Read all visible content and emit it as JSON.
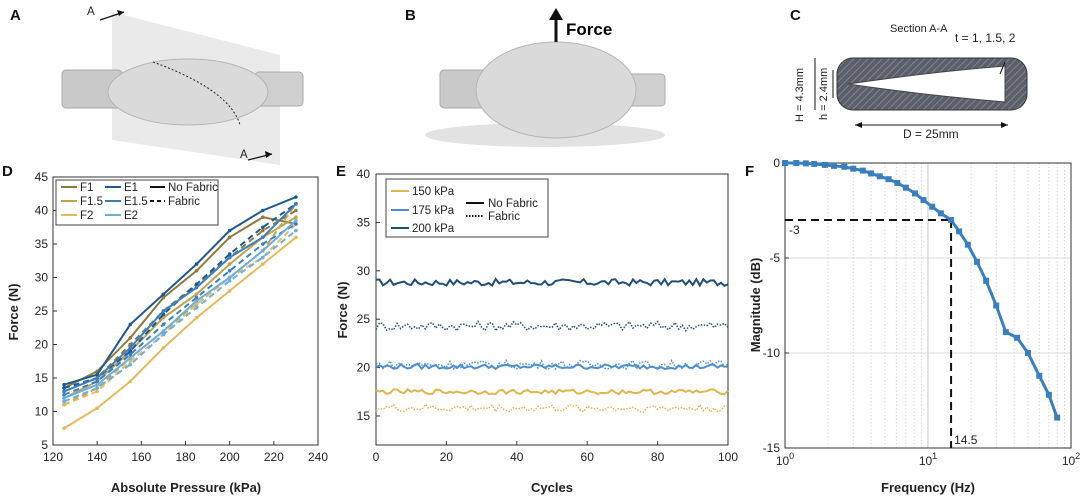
{
  "panels": {
    "a": "A",
    "b": "B",
    "c": "C",
    "d": "D",
    "e": "E",
    "f": "F"
  },
  "photo_a": {
    "section_mark_top": "A",
    "section_mark_bottom": "A"
  },
  "photo_b": {
    "force_label": "Force"
  },
  "section": {
    "title": "Section A-A",
    "t_label": "t = 1, 1.5, 2",
    "H_label": "H = 4.3mm",
    "h_label": "h = 2.4mm",
    "D_label": "D = 25mm"
  },
  "chart_data": [
    {
      "id": "D",
      "type": "line",
      "xlabel": "Absolute Pressure (kPa)",
      "ylabel": "Force (N)",
      "xlim": [
        120,
        240
      ],
      "ylim": [
        5,
        45
      ],
      "xticks": [
        120,
        140,
        160,
        180,
        200,
        220,
        240
      ],
      "yticks": [
        5,
        10,
        15,
        20,
        25,
        30,
        35,
        40,
        45
      ],
      "grid": false,
      "legend_position": "top-left",
      "legend_entries": [
        "F1",
        "F1.5",
        "F2",
        "E1",
        "E1.5",
        "E2",
        "No Fabric",
        "Fabric"
      ],
      "x": [
        125,
        140,
        155,
        170,
        185,
        200,
        215,
        230
      ],
      "series": [
        {
          "name": "F1",
          "color": "#8d7a3f",
          "style": "solid",
          "values": [
            13.5,
            16,
            21,
            27,
            31,
            36,
            39,
            38
          ]
        },
        {
          "name": "F1",
          "color": "#8d7a3f",
          "style": "dashed",
          "values": [
            13,
            15,
            20,
            25,
            29,
            33,
            37,
            40
          ]
        },
        {
          "name": "F1.5",
          "color": "#c4a24a",
          "style": "solid",
          "values": [
            12,
            14.5,
            19,
            24,
            27.5,
            32,
            36,
            39
          ]
        },
        {
          "name": "F1.5",
          "color": "#c4a24a",
          "style": "dashed",
          "values": [
            11,
            13.5,
            18,
            22,
            26,
            30,
            34,
            41
          ]
        },
        {
          "name": "F2",
          "color": "#e4bb5c",
          "style": "solid",
          "values": [
            7.5,
            10.5,
            14.5,
            19.5,
            24,
            28,
            32,
            36
          ]
        },
        {
          "name": "F2",
          "color": "#e4bb5c",
          "style": "dashed",
          "values": [
            11,
            13,
            17.5,
            21.5,
            26,
            30,
            33,
            38
          ]
        },
        {
          "name": "E1",
          "color": "#1f5a8e",
          "style": "solid",
          "values": [
            14,
            15.5,
            23,
            27.5,
            32,
            37,
            40,
            42
          ]
        },
        {
          "name": "E1",
          "color": "#1f5a8e",
          "style": "dashed",
          "values": [
            13.5,
            15,
            19,
            24.5,
            29,
            33.5,
            37.5,
            41
          ]
        },
        {
          "name": "E1.5",
          "color": "#3a7fbd",
          "style": "solid",
          "values": [
            13,
            15,
            19.5,
            25,
            28.5,
            33,
            36,
            41
          ]
        },
        {
          "name": "E1.5",
          "color": "#3a7fbd",
          "style": "dashed",
          "values": [
            12.5,
            14.5,
            18.5,
            23,
            27,
            31,
            35,
            38
          ]
        },
        {
          "name": "E2",
          "color": "#6aaee0",
          "style": "solid",
          "values": [
            12,
            14,
            18,
            22,
            26.5,
            30,
            34,
            38.5
          ]
        },
        {
          "name": "E2",
          "color": "#6aaee0",
          "style": "dashed",
          "values": [
            11.5,
            13.5,
            17,
            21.5,
            25.5,
            29.5,
            33,
            37
          ]
        }
      ]
    },
    {
      "id": "E",
      "type": "line",
      "xlabel": "Cycles",
      "ylabel": "Force (N)",
      "xlim": [
        0,
        100
      ],
      "ylim": [
        12,
        40
      ],
      "xticks": [
        0,
        20,
        40,
        60,
        80,
        100
      ],
      "yticks": [
        15,
        20,
        25,
        30,
        35,
        40
      ],
      "grid": false,
      "legend_position": "top-left",
      "legend_entries": [
        "150 kPa",
        "175 kPa",
        "200 kPa",
        "No Fabric",
        "Fabric"
      ],
      "series": [
        {
          "name": "200 kPa",
          "color": "#1f4e79",
          "style": "solid",
          "mean": 28.8,
          "noise": 0.35
        },
        {
          "name": "200 kPa",
          "color": "#1f4e79",
          "style": "dotted",
          "mean": 24.3,
          "noise": 0.5
        },
        {
          "name": "175 kPa",
          "color": "#4b8fcf",
          "style": "solid",
          "mean": 20.1,
          "noise": 0.25
        },
        {
          "name": "175 kPa",
          "color": "#4b8fcf",
          "style": "dotted",
          "mean": 20.3,
          "noise": 0.45
        },
        {
          "name": "150 kPa",
          "color": "#e1b54e",
          "style": "solid",
          "mean": 17.5,
          "noise": 0.25
        },
        {
          "name": "150 kPa",
          "color": "#e1b54e",
          "style": "dotted",
          "mean": 15.8,
          "noise": 0.4
        }
      ]
    },
    {
      "id": "F",
      "type": "line",
      "xlabel": "Frequency (Hz)",
      "ylabel": "Magnitude (dB)",
      "xscale": "log",
      "xlim": [
        1,
        100
      ],
      "ylim": [
        -15,
        0
      ],
      "xticks": [
        "10^0",
        "10^1",
        "10^2"
      ],
      "yticks": [
        0,
        -5,
        -10,
        -15
      ],
      "grid": true,
      "annotations": [
        "-3",
        "14.5"
      ],
      "series": [
        {
          "name": "",
          "color": "#3a7fbd",
          "x": [
            1,
            1.2,
            1.4,
            1.6,
            1.9,
            2.2,
            2.6,
            3,
            3.5,
            4,
            4.6,
            5.3,
            6.1,
            7,
            8.1,
            9.3,
            10.7,
            12.3,
            14.5,
            16.5,
            19,
            22,
            25.5,
            30,
            35,
            42,
            50,
            60,
            70,
            80
          ],
          "values": [
            0,
            0,
            -0.02,
            -0.05,
            -0.1,
            -0.15,
            -0.2,
            -0.3,
            -0.4,
            -0.55,
            -0.7,
            -0.85,
            -1.05,
            -1.3,
            -1.6,
            -1.95,
            -2.3,
            -2.65,
            -3,
            -3.6,
            -4.3,
            -5.2,
            -6.2,
            -7.5,
            -8.9,
            -9.2,
            -10,
            -11.2,
            -12.2,
            -13.4
          ]
        }
      ]
    }
  ]
}
